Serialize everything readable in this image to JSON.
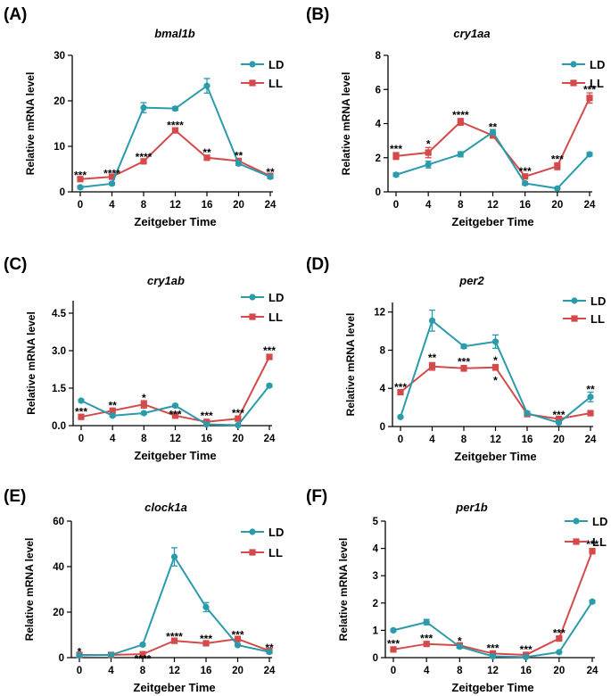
{
  "colors": {
    "LD": "#2a9bab",
    "LL": "#d44a4a",
    "axis": "#000000"
  },
  "chart_data": [
    {
      "type": "line",
      "panel_label": "(A)",
      "title": "bmal1b",
      "xlabel": "Zeitgeber Time",
      "ylabel": "Relative mRNA level",
      "x": [
        0,
        4,
        8,
        12,
        16,
        20,
        24
      ],
      "xlim": [
        0,
        24
      ],
      "ylim": [
        0,
        30
      ],
      "yticks": [
        0,
        10,
        20,
        30
      ],
      "legend": "top-right",
      "series": [
        {
          "name": "LD",
          "marker": "circle",
          "values": [
            1.0,
            1.8,
            18.5,
            18.3,
            23.3,
            6.2,
            3.3
          ],
          "errors": [
            0.3,
            0.3,
            1.1,
            0.4,
            1.6,
            0.4,
            0.3
          ]
        },
        {
          "name": "LL",
          "marker": "square",
          "values": [
            2.8,
            3.3,
            6.7,
            13.5,
            7.5,
            6.8,
            3.5
          ],
          "errors": [
            0.3,
            0.3,
            0.4,
            0.5,
            0.4,
            0.5,
            0.3
          ]
        }
      ],
      "annotations": [
        {
          "x": 0,
          "text": "***",
          "y": 3.6
        },
        {
          "x": 4,
          "text": "****",
          "y": 4.0
        },
        {
          "x": 8,
          "text": "****",
          "y": 7.6
        },
        {
          "x": 12,
          "text": "****",
          "y": 14.6
        },
        {
          "x": 16,
          "text": "**",
          "y": 8.6
        },
        {
          "x": 20,
          "text": "**",
          "y": 7.9
        },
        {
          "x": 24,
          "text": "**",
          "y": 4.3
        }
      ]
    },
    {
      "type": "line",
      "panel_label": "(B)",
      "title": "cry1aa",
      "xlabel": "Zeitgeber Time",
      "ylabel": "Relative mRNA level",
      "x": [
        0,
        4,
        8,
        12,
        16,
        20,
        24
      ],
      "xlim": [
        0,
        24
      ],
      "ylim": [
        0,
        8
      ],
      "yticks": [
        0,
        2,
        4,
        6,
        8
      ],
      "legend": "top-right",
      "series": [
        {
          "name": "LD",
          "marker": "circle",
          "values": [
            1.0,
            1.6,
            2.2,
            3.5,
            0.5,
            0.2,
            2.2
          ],
          "errors": [
            0.1,
            0.2,
            0.15,
            0.15,
            0.1,
            0.05,
            0.1
          ]
        },
        {
          "name": "LL",
          "marker": "square",
          "values": [
            2.1,
            2.3,
            4.1,
            3.3,
            0.9,
            1.5,
            5.5
          ],
          "errors": [
            0.2,
            0.3,
            0.2,
            0.15,
            0.1,
            0.2,
            0.3
          ]
        }
      ],
      "annotations": [
        {
          "x": 0,
          "text": "***",
          "y": 2.5
        },
        {
          "x": 4,
          "text": "*",
          "y": 2.8
        },
        {
          "x": 8,
          "text": "****",
          "y": 4.5
        },
        {
          "x": 12,
          "text": "**",
          "y": 3.8
        },
        {
          "x": 16,
          "text": "***",
          "y": 1.2
        },
        {
          "x": 20,
          "text": "***",
          "y": 1.9
        },
        {
          "x": 24,
          "text": "***",
          "y": 6.0
        }
      ]
    },
    {
      "type": "line",
      "panel_label": "(C)",
      "title": "cry1ab",
      "xlabel": "Zeitgeber Time",
      "ylabel": "Relative mRNA level",
      "x": [
        0,
        4,
        8,
        12,
        16,
        20,
        24
      ],
      "xlim": [
        0,
        24
      ],
      "ylim": [
        0,
        5
      ],
      "yticks": [
        0,
        1.5,
        3.0,
        4.5
      ],
      "ytick_labels": [
        "0.0",
        "1.5",
        "3.0",
        "4.5"
      ],
      "legend": "top-right",
      "series": [
        {
          "name": "LD",
          "marker": "circle",
          "values": [
            1.0,
            0.4,
            0.5,
            0.8,
            0.05,
            0.02,
            1.6
          ],
          "errors": [
            0.05,
            0.05,
            0.05,
            0.05,
            0.02,
            0.02,
            0.05
          ]
        },
        {
          "name": "LL",
          "marker": "square",
          "values": [
            0.35,
            0.6,
            0.85,
            0.4,
            0.15,
            0.28,
            2.75
          ],
          "errors": [
            0.05,
            0.05,
            0.15,
            0.1,
            0.05,
            0.05,
            0.1
          ]
        }
      ],
      "annotations": [
        {
          "x": 0,
          "text": "***",
          "y": 0.55
        },
        {
          "x": 4,
          "text": "**",
          "y": 0.8
        },
        {
          "x": 8,
          "text": "*",
          "y": 1.1
        },
        {
          "x": 12,
          "text": "***",
          "y": 0.45
        },
        {
          "x": 16,
          "text": "***",
          "y": 0.4
        },
        {
          "x": 20,
          "text": "***",
          "y": 0.5
        },
        {
          "x": 24,
          "text": "***",
          "y": 3.0
        }
      ]
    },
    {
      "type": "line",
      "panel_label": "(D)",
      "title": "per2",
      "xlabel": "Zeitgeber Time",
      "ylabel": "Relative mRNA level",
      "x": [
        0,
        4,
        8,
        12,
        16,
        20,
        24
      ],
      "xlim": [
        0,
        24
      ],
      "ylim": [
        0,
        13
      ],
      "yticks": [
        0,
        4,
        8,
        12
      ],
      "legend": "top-right",
      "series": [
        {
          "name": "LD",
          "marker": "circle",
          "values": [
            1.0,
            11.1,
            8.4,
            8.9,
            1.4,
            0.4,
            3.1
          ],
          "errors": [
            0.1,
            1.1,
            0.2,
            0.7,
            0.1,
            0.1,
            0.5
          ]
        },
        {
          "name": "LL",
          "marker": "square",
          "values": [
            3.6,
            6.3,
            6.1,
            6.2,
            1.3,
            0.8,
            1.4
          ],
          "errors": [
            0.2,
            0.4,
            0.3,
            0.3,
            0.1,
            0.1,
            0.1
          ]
        }
      ],
      "annotations": [
        {
          "x": 0,
          "text": "***",
          "y": 4.1
        },
        {
          "x": 4,
          "text": "**",
          "y": 7.2
        },
        {
          "x": 8,
          "text": "***",
          "y": 6.8
        },
        {
          "x": 12,
          "text": "*",
          "y": 6.9
        },
        {
          "x": 12,
          "text": "*",
          "y": 4.8
        },
        {
          "x": 20,
          "text": "***",
          "y": 1.2
        },
        {
          "x": 24,
          "text": "**",
          "y": 3.9
        }
      ]
    },
    {
      "type": "line",
      "panel_label": "(E)",
      "title": "clock1a",
      "xlabel": "Zeitgeber Time",
      "ylabel": "Relative mRNA level",
      "x": [
        0,
        4,
        8,
        12,
        16,
        20,
        24
      ],
      "xlim": [
        0,
        24
      ],
      "ylim": [
        0,
        60
      ],
      "yticks": [
        0,
        20,
        40,
        60
      ],
      "legend": "top-right",
      "series": [
        {
          "name": "LD",
          "marker": "circle",
          "values": [
            1.0,
            1.2,
            5.7,
            44.3,
            22.2,
            5.5,
            2.5
          ],
          "errors": [
            0.2,
            0.2,
            0.5,
            4.0,
            2.0,
            0.5,
            0.3
          ]
        },
        {
          "name": "LL",
          "marker": "square",
          "values": [
            1.2,
            1.2,
            1.5,
            7.4,
            6.3,
            8.2,
            3.0
          ],
          "errors": [
            0.2,
            0.2,
            0.3,
            0.5,
            0.5,
            0.6,
            0.3
          ]
        }
      ],
      "annotations": [
        {
          "x": 0,
          "text": "*",
          "y": 2.5
        },
        {
          "x": 8,
          "text": "****",
          "y": -0.6
        },
        {
          "x": 12,
          "text": "****",
          "y": 9.3
        },
        {
          "x": 16,
          "text": "***",
          "y": 8.2
        },
        {
          "x": 20,
          "text": "***",
          "y": 10.0
        },
        {
          "x": 24,
          "text": "**",
          "y": 4.4
        }
      ]
    },
    {
      "type": "line",
      "panel_label": "(F)",
      "title": "per1b",
      "xlabel": "Zeitgeber Time",
      "ylabel": "Relative mRNA level",
      "x": [
        0,
        4,
        8,
        12,
        16,
        20,
        24
      ],
      "xlim": [
        0,
        24
      ],
      "ylim": [
        0,
        5
      ],
      "yticks": [
        0,
        1,
        2,
        3,
        4,
        5
      ],
      "legend": "top-right",
      "series": [
        {
          "name": "LD",
          "marker": "circle",
          "values": [
            1.0,
            1.3,
            0.4,
            0.05,
            0.02,
            0.2,
            2.05
          ],
          "errors": [
            0.05,
            0.1,
            0.05,
            0.02,
            0.02,
            0.03,
            0.05
          ]
        },
        {
          "name": "LL",
          "marker": "square",
          "values": [
            0.3,
            0.5,
            0.45,
            0.15,
            0.1,
            0.7,
            3.9
          ],
          "errors": [
            0.05,
            0.05,
            0.05,
            0.03,
            0.03,
            0.05,
            0.1
          ]
        }
      ],
      "annotations": [
        {
          "x": 0,
          "text": "***",
          "y": 0.5
        },
        {
          "x": 4,
          "text": "***",
          "y": 0.7
        },
        {
          "x": 8,
          "text": "*",
          "y": 0.6
        },
        {
          "x": 12,
          "text": "***",
          "y": 0.35
        },
        {
          "x": 16,
          "text": "***",
          "y": 0.3
        },
        {
          "x": 20,
          "text": "***",
          "y": 0.9
        },
        {
          "x": 24,
          "text": "***",
          "y": 4.15
        }
      ]
    }
  ]
}
